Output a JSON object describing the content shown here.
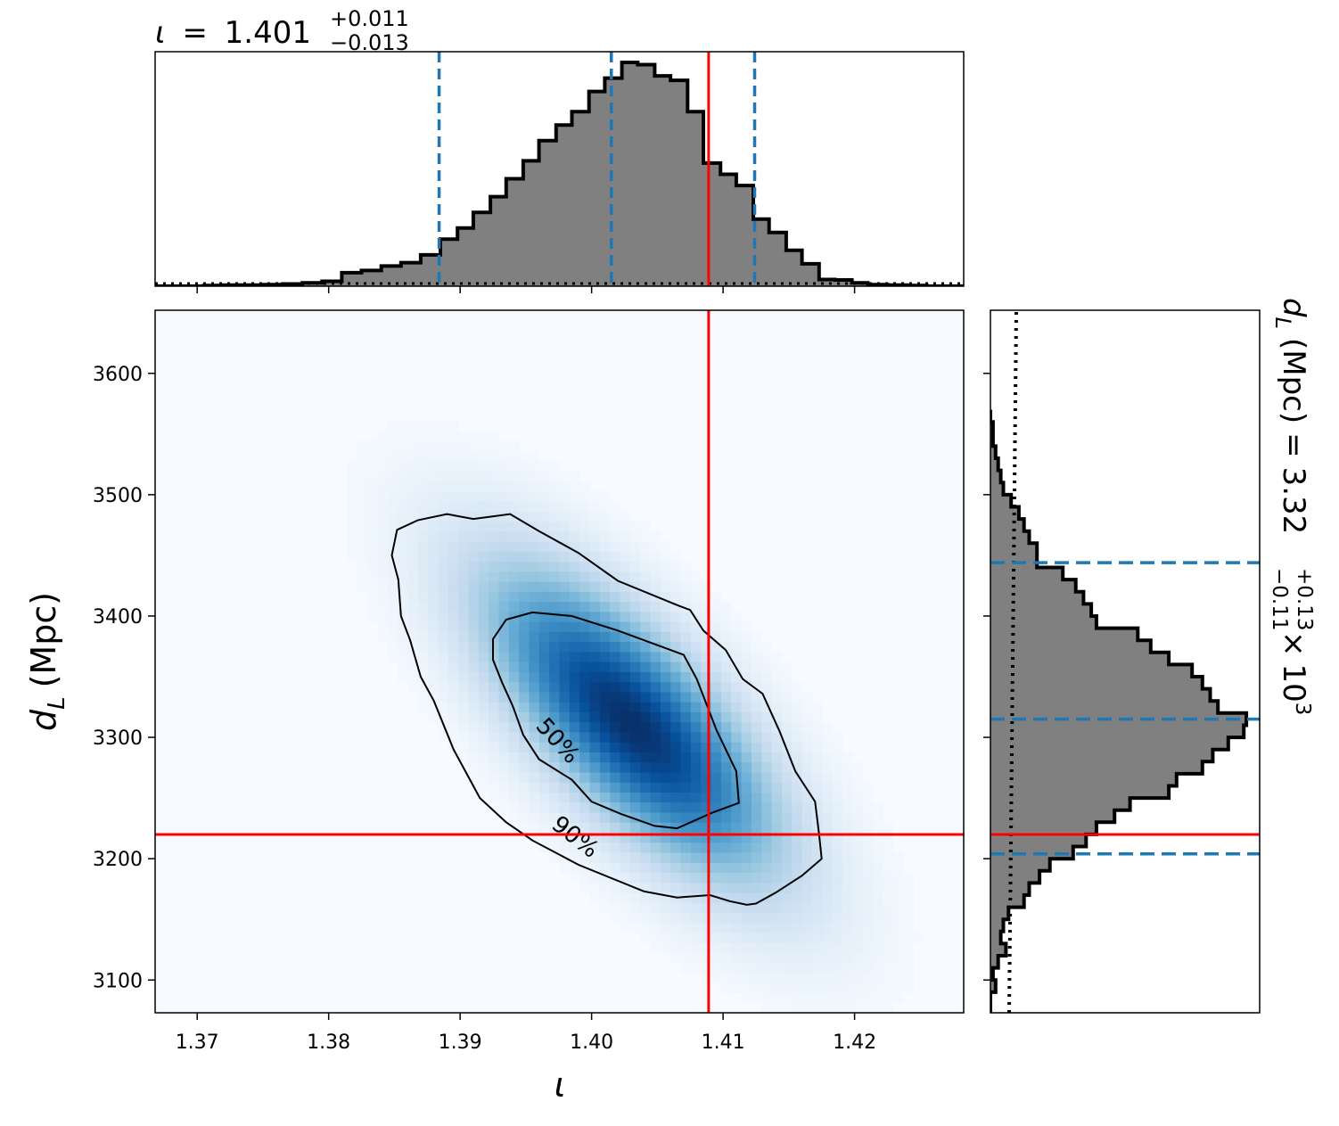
{
  "chart_data": {
    "type": "heatmap",
    "top_title": {
      "symbol": "ι",
      "equals": "=",
      "value": "1.401",
      "upper": "+0.011",
      "lower": "−0.013"
    },
    "right_title": {
      "symbol": "d",
      "subscript": "L",
      "unit": "(Mpc)",
      "equals": "=",
      "value": "3.32",
      "upper": "+0.13",
      "lower": "−0.11",
      "times": "×",
      "base": "10",
      "exponent": "3"
    },
    "xlabel": "ι",
    "ylabel": {
      "symbol": "d",
      "subscript": "L",
      "unit": "(Mpc)"
    },
    "xlim": [
      1.3668,
      1.4283
    ],
    "ylim": [
      3073,
      3652
    ],
    "xticks": [
      {
        "value": 1.37,
        "label": "1.37"
      },
      {
        "value": 1.38,
        "label": "1.38"
      },
      {
        "value": 1.39,
        "label": "1.39"
      },
      {
        "value": 1.4,
        "label": "1.40"
      },
      {
        "value": 1.41,
        "label": "1.41"
      },
      {
        "value": 1.42,
        "label": "1.42"
      }
    ],
    "yticks": [
      {
        "value": 3100,
        "label": "3100"
      },
      {
        "value": 3200,
        "label": "3200"
      },
      {
        "value": 3300,
        "label": "3300"
      },
      {
        "value": 3400,
        "label": "3400"
      },
      {
        "value": 3500,
        "label": "3500"
      },
      {
        "value": 3600,
        "label": "3600"
      }
    ],
    "true_values": {
      "x": 1.4089,
      "y": 3220
    },
    "x_quantiles": [
      1.3884,
      1.4015,
      1.4124
    ],
    "y_quantiles": [
      3204,
      3315,
      3444
    ],
    "contour_labels": [
      "50%",
      "90%"
    ],
    "contour_50": [
      [
        1.3925,
        3381
      ],
      [
        1.3935,
        3397
      ],
      [
        1.3955,
        3403
      ],
      [
        1.3985,
        3400
      ],
      [
        1.402,
        3388
      ],
      [
        1.4055,
        3374
      ],
      [
        1.407,
        3368
      ],
      [
        1.408,
        3348
      ],
      [
        1.4095,
        3306
      ],
      [
        1.411,
        3272
      ],
      [
        1.4112,
        3246
      ],
      [
        1.4092,
        3238
      ],
      [
        1.4065,
        3225
      ],
      [
        1.4048,
        3227
      ],
      [
        1.4022,
        3237
      ],
      [
        1.4,
        3247
      ],
      [
        1.3985,
        3265
      ],
      [
        1.396,
        3282
      ],
      [
        1.3948,
        3302
      ],
      [
        1.394,
        3326
      ],
      [
        1.3932,
        3345
      ],
      [
        1.3925,
        3364
      ],
      [
        1.3925,
        3381
      ]
    ],
    "contour_90": [
      [
        1.3852,
        3471
      ],
      [
        1.3868,
        3479
      ],
      [
        1.389,
        3484
      ],
      [
        1.391,
        3480
      ],
      [
        1.3938,
        3484
      ],
      [
        1.396,
        3470
      ],
      [
        1.399,
        3452
      ],
      [
        1.402,
        3429
      ],
      [
        1.4065,
        3409
      ],
      [
        1.4075,
        3405
      ],
      [
        1.4085,
        3388
      ],
      [
        1.4102,
        3372
      ],
      [
        1.4115,
        3348
      ],
      [
        1.413,
        3336
      ],
      [
        1.4143,
        3305
      ],
      [
        1.4155,
        3272
      ],
      [
        1.417,
        3247
      ],
      [
        1.4173,
        3220
      ],
      [
        1.4175,
        3200
      ],
      [
        1.416,
        3186
      ],
      [
        1.414,
        3172
      ],
      [
        1.4125,
        3163
      ],
      [
        1.4118,
        3162
      ],
      [
        1.4105,
        3165
      ],
      [
        1.409,
        3170
      ],
      [
        1.4065,
        3168
      ],
      [
        1.404,
        3173
      ],
      [
        1.399,
        3195
      ],
      [
        1.3955,
        3215
      ],
      [
        1.3935,
        3230
      ],
      [
        1.3915,
        3250
      ],
      [
        1.3895,
        3290
      ],
      [
        1.388,
        3330
      ],
      [
        1.387,
        3350
      ],
      [
        1.3862,
        3380
      ],
      [
        1.3855,
        3400
      ],
      [
        1.3853,
        3430
      ],
      [
        1.3848,
        3450
      ],
      [
        1.3852,
        3471
      ]
    ],
    "marginal_x": {
      "bins": [
        1.3668,
        1.369,
        1.3705,
        1.372,
        1.3735,
        1.375,
        1.3765,
        1.378,
        1.3795,
        1.381,
        1.3825,
        1.384,
        1.3855,
        1.387,
        1.3885,
        1.3898,
        1.391,
        1.3923,
        1.3935,
        1.3948,
        1.396,
        1.3973,
        1.3985,
        1.3998,
        1.401,
        1.4023,
        1.4035,
        1.4048,
        1.406,
        1.4073,
        1.4085,
        1.4098,
        1.411,
        1.4123,
        1.4135,
        1.4148,
        1.416,
        1.4173,
        1.4185,
        1.4198,
        1.421,
        1.4225,
        1.424,
        1.4255,
        1.427,
        1.4283
      ],
      "heights": [
        0.0,
        0.0,
        0.003,
        0.005,
        0.005,
        0.007,
        0.01,
        0.015,
        0.022,
        0.06,
        0.07,
        0.09,
        0.105,
        0.14,
        0.21,
        0.26,
        0.33,
        0.4,
        0.48,
        0.56,
        0.65,
        0.72,
        0.78,
        0.87,
        0.93,
        1.0,
        0.99,
        0.94,
        0.92,
        0.78,
        0.55,
        0.5,
        0.45,
        0.3,
        0.24,
        0.16,
        0.1,
        0.03,
        0.028,
        0.015,
        0.007,
        0.005,
        0.003,
        0.0,
        0.0
      ]
    },
    "marginal_y": {
      "bins": [
        3073,
        3090,
        3100,
        3110,
        3120,
        3130,
        3140,
        3150,
        3160,
        3170,
        3180,
        3190,
        3200,
        3210,
        3220,
        3230,
        3240,
        3250,
        3260,
        3270,
        3280,
        3290,
        3300,
        3310,
        3320,
        3330,
        3340,
        3350,
        3360,
        3370,
        3380,
        3390,
        3400,
        3410,
        3420,
        3430,
        3440,
        3450,
        3460,
        3470,
        3480,
        3490,
        3500,
        3510,
        3520,
        3530,
        3540,
        3550,
        3560,
        3570
      ],
      "heights": [
        0.0,
        0.02,
        0.01,
        0.03,
        0.06,
        0.04,
        0.05,
        0.07,
        0.13,
        0.15,
        0.19,
        0.23,
        0.32,
        0.37,
        0.41,
        0.48,
        0.54,
        0.69,
        0.72,
        0.82,
        0.86,
        0.92,
        0.98,
        0.99,
        0.88,
        0.85,
        0.82,
        0.78,
        0.69,
        0.62,
        0.57,
        0.41,
        0.39,
        0.36,
        0.33,
        0.28,
        0.18,
        0.18,
        0.15,
        0.13,
        0.11,
        0.08,
        0.05,
        0.04,
        0.03,
        0.02,
        0.01,
        0.01,
        0.0
      ]
    },
    "colors": {
      "hist_fill": "#808080",
      "truth": "#ff0000",
      "quantile": "#1f77b4",
      "cmap_low": "#f7fbff",
      "cmap_high": "#08306b"
    }
  }
}
